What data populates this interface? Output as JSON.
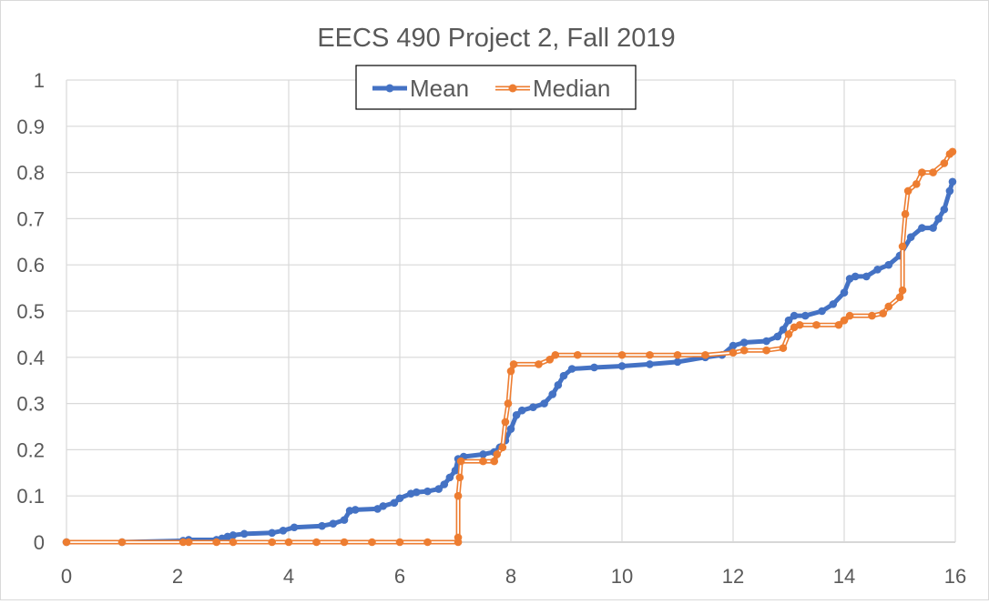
{
  "chart_data": {
    "type": "line",
    "title": "EECS 490 Project 2, Fall 2019",
    "xlabel": "",
    "ylabel": "",
    "xlim": [
      0,
      16
    ],
    "ylim": [
      0,
      1
    ],
    "x_ticks": [
      "0",
      "2",
      "4",
      "6",
      "8",
      "10",
      "12",
      "14",
      "16"
    ],
    "y_ticks": [
      "0",
      "0.1",
      "0.2",
      "0.3",
      "0.4",
      "0.5",
      "0.6",
      "0.7",
      "0.8",
      "0.9",
      "1"
    ],
    "grid": true,
    "legend": "top-center",
    "series": [
      {
        "name": "Mean",
        "color": "#4472c4",
        "points": [
          [
            0,
            0
          ],
          [
            1,
            0
          ],
          [
            2.1,
            0.003
          ],
          [
            2.2,
            0.005
          ],
          [
            2.7,
            0.005
          ],
          [
            2.8,
            0.008
          ],
          [
            2.9,
            0.012
          ],
          [
            3,
            0.015
          ],
          [
            3.2,
            0.018
          ],
          [
            3.7,
            0.02
          ],
          [
            3.9,
            0.025
          ],
          [
            4.1,
            0.032
          ],
          [
            4.6,
            0.035
          ],
          [
            4.8,
            0.04
          ],
          [
            5,
            0.048
          ],
          [
            5.1,
            0.068
          ],
          [
            5.2,
            0.07
          ],
          [
            5.6,
            0.072
          ],
          [
            5.7,
            0.078
          ],
          [
            5.9,
            0.085
          ],
          [
            6,
            0.095
          ],
          [
            6.2,
            0.105
          ],
          [
            6.3,
            0.108
          ],
          [
            6.5,
            0.11
          ],
          [
            6.7,
            0.115
          ],
          [
            6.8,
            0.125
          ],
          [
            6.9,
            0.14
          ],
          [
            7,
            0.155
          ],
          [
            7.05,
            0.18
          ],
          [
            7.15,
            0.185
          ],
          [
            7.5,
            0.19
          ],
          [
            7.7,
            0.195
          ],
          [
            7.8,
            0.205
          ],
          [
            7.9,
            0.22
          ],
          [
            8,
            0.245
          ],
          [
            8.1,
            0.275
          ],
          [
            8.2,
            0.285
          ],
          [
            8.4,
            0.292
          ],
          [
            8.6,
            0.3
          ],
          [
            8.75,
            0.32
          ],
          [
            8.85,
            0.34
          ],
          [
            8.95,
            0.36
          ],
          [
            9.1,
            0.375
          ],
          [
            9.5,
            0.378
          ],
          [
            10,
            0.381
          ],
          [
            10.5,
            0.385
          ],
          [
            11,
            0.39
          ],
          [
            11.5,
            0.4
          ],
          [
            11.8,
            0.405
          ],
          [
            12,
            0.425
          ],
          [
            12.2,
            0.432
          ],
          [
            12.6,
            0.435
          ],
          [
            12.8,
            0.445
          ],
          [
            12.9,
            0.46
          ],
          [
            13,
            0.48
          ],
          [
            13.1,
            0.49
          ],
          [
            13.3,
            0.49
          ],
          [
            13.6,
            0.5
          ],
          [
            13.8,
            0.515
          ],
          [
            14,
            0.54
          ],
          [
            14.1,
            0.57
          ],
          [
            14.2,
            0.575
          ],
          [
            14.4,
            0.575
          ],
          [
            14.6,
            0.59
          ],
          [
            14.8,
            0.6
          ],
          [
            15,
            0.62
          ],
          [
            15.2,
            0.66
          ],
          [
            15.4,
            0.68
          ],
          [
            15.6,
            0.68
          ],
          [
            15.7,
            0.7
          ],
          [
            15.8,
            0.72
          ],
          [
            15.9,
            0.76
          ],
          [
            15.95,
            0.78
          ]
        ]
      },
      {
        "name": "Median",
        "color": "#ed7d31",
        "points": [
          [
            0,
            0
          ],
          [
            1,
            0
          ],
          [
            2.1,
            0
          ],
          [
            2.2,
            0
          ],
          [
            2.7,
            0
          ],
          [
            3,
            0
          ],
          [
            3.7,
            0
          ],
          [
            4,
            0
          ],
          [
            4.5,
            0
          ],
          [
            5,
            0
          ],
          [
            5.5,
            0
          ],
          [
            6,
            0
          ],
          [
            6.5,
            0
          ],
          [
            7.05,
            0
          ],
          [
            7.05,
            0.01
          ],
          [
            7.05,
            0.1
          ],
          [
            7.08,
            0.14
          ],
          [
            7.1,
            0.175
          ],
          [
            7.5,
            0.175
          ],
          [
            7.7,
            0.175
          ],
          [
            7.75,
            0.19
          ],
          [
            7.85,
            0.205
          ],
          [
            7.9,
            0.26
          ],
          [
            7.95,
            0.3
          ],
          [
            8.0,
            0.37
          ],
          [
            8.05,
            0.385
          ],
          [
            8.5,
            0.385
          ],
          [
            8.7,
            0.395
          ],
          [
            8.8,
            0.405
          ],
          [
            9.2,
            0.405
          ],
          [
            10,
            0.405
          ],
          [
            10.5,
            0.405
          ],
          [
            11,
            0.405
          ],
          [
            11.5,
            0.405
          ],
          [
            12,
            0.41
          ],
          [
            12.2,
            0.415
          ],
          [
            12.6,
            0.415
          ],
          [
            12.9,
            0.42
          ],
          [
            13.0,
            0.45
          ],
          [
            13.1,
            0.465
          ],
          [
            13.2,
            0.47
          ],
          [
            13.5,
            0.47
          ],
          [
            13.9,
            0.47
          ],
          [
            14.0,
            0.48
          ],
          [
            14.1,
            0.49
          ],
          [
            14.5,
            0.49
          ],
          [
            14.7,
            0.495
          ],
          [
            14.8,
            0.51
          ],
          [
            15,
            0.53
          ],
          [
            15.05,
            0.545
          ],
          [
            15.05,
            0.64
          ],
          [
            15.1,
            0.71
          ],
          [
            15.15,
            0.76
          ],
          [
            15.3,
            0.775
          ],
          [
            15.4,
            0.8
          ],
          [
            15.6,
            0.8
          ],
          [
            15.8,
            0.82
          ],
          [
            15.9,
            0.84
          ],
          [
            15.95,
            0.845
          ]
        ]
      }
    ]
  }
}
